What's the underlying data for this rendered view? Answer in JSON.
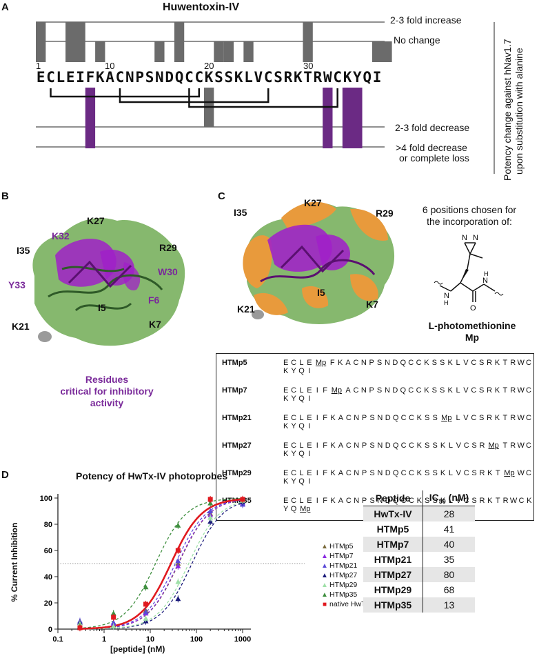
{
  "panels": {
    "a": "A",
    "b": "B",
    "c": "C",
    "d": "D"
  },
  "panel_a": {
    "title": "Huwentoxin-IV",
    "sequence": [
      "E",
      "C",
      "L",
      "E",
      "I",
      "F",
      "K",
      "A",
      "C",
      "N",
      "P",
      "S",
      "N",
      "D",
      "Q",
      "C",
      "C",
      "K",
      "S",
      "S",
      "K",
      "L",
      "V",
      "C",
      "S",
      "R",
      "K",
      "T",
      "R",
      "W",
      "C",
      "K",
      "Y",
      "Q",
      "I"
    ],
    "position_numbers": [
      "1",
      "10",
      "20",
      "30"
    ],
    "levels": [
      "2-3 fold increase",
      "No change",
      "2-3 fold decrease",
      ">4 fold decrease",
      "or complete loss"
    ],
    "side_label_line1": "Potency change against hNav1.7",
    "side_label_line2": "upon substitution with alanine",
    "colors": {
      "neutral": "#6b6b6b",
      "critical": "#6b2a84"
    }
  },
  "panel_b": {
    "labels": [
      "K27",
      "I35",
      "R29",
      "K32",
      "W30",
      "Y33",
      "F6",
      "I5",
      "K21",
      "K7"
    ],
    "caption_line1": "Residues",
    "caption_line2": "critical for inhibitory",
    "caption_line3": "activity",
    "colors": {
      "surface": "#86b86e",
      "critical": "#a020c8",
      "label": "#7a2a9a"
    }
  },
  "panel_c": {
    "labels": [
      "K27",
      "I35",
      "R29",
      "I5",
      "K21",
      "K7"
    ],
    "desc_line1": "6 positions chosen for",
    "desc_line2": "the incorporation of:",
    "compound_name": "L-photomethionine",
    "compound_abbr": "Mp",
    "colors": {
      "orange": "#e89a3c"
    },
    "sequences": [
      {
        "name": "HTMp5",
        "pre": "ECLE",
        "post": "FKACNPSNDQCCKSSKLVCSRKTRWCKYQI"
      },
      {
        "name": "HTMp7",
        "pre": "ECLEIF",
        "post": "ACNPSNDQCCKSSKLVCSRKTRWCKYQI"
      },
      {
        "name": "HTMp21",
        "pre": "ECLEIFKACNPSNDQCCKSS",
        "post": "LVCSRKTRWCKYQI"
      },
      {
        "name": "HTMp27",
        "pre": "ECLEIFKACNPSNDQCCKSSKLVCSR",
        "post": "TRWCKYQI"
      },
      {
        "name": "HTMp29",
        "pre": "ECLEIFKACNPSNDQCCKSSKLVCSRKT",
        "post": "WCKYQI"
      },
      {
        "name": "HTMp35",
        "pre": "ECLEIFKACNPSNDQCCKSSKLVCSRKTRWCKYQ",
        "post": ""
      }
    ]
  },
  "panel_d": {
    "chart_data": {
      "type": "scatter",
      "title": "Potency of HwTx-IV photoprobes",
      "xlabel": "[peptide] (nM)",
      "ylabel": "% Current Inhibition",
      "xscale": "log",
      "xlim": [
        0.1,
        1000
      ],
      "ylim": [
        0,
        100
      ],
      "xticks": [
        "0.1",
        "1",
        "10",
        "100",
        "1000"
      ],
      "yticks": [
        "0",
        "20",
        "40",
        "60",
        "80",
        "100"
      ],
      "reference_line_y": 50,
      "legend_position": "right",
      "x": [
        0.3,
        1.6,
        8,
        40,
        200,
        1000
      ],
      "series": [
        {
          "name": "HTMp5",
          "ic50": 41,
          "color": "#7a6a3a",
          "marker": "triangle",
          "y": [
            1,
            3,
            14,
            50,
            88,
            98
          ]
        },
        {
          "name": "HTMp7",
          "ic50": 40,
          "color": "#8a2be2",
          "marker": "triangle",
          "y": [
            2,
            4,
            12,
            48,
            87,
            96
          ]
        },
        {
          "name": "HTMp21",
          "ic50": 35,
          "color": "#5b4ad8",
          "marker": "triangle",
          "y": [
            6,
            5,
            13,
            52,
            90,
            95
          ]
        },
        {
          "name": "HTMp27",
          "ic50": 80,
          "color": "#1a1a7a",
          "marker": "triangle",
          "y": [
            5,
            2,
            6,
            23,
            82,
            97
          ]
        },
        {
          "name": "HTMp29",
          "ic50": 68,
          "color": "#9fe0a8",
          "marker": "triangle",
          "y": [
            4,
            2,
            8,
            36,
            85,
            98
          ]
        },
        {
          "name": "HTMp35",
          "ic50": 13,
          "color": "#3f8f3f",
          "marker": "triangle",
          "y": [
            2,
            12,
            32,
            79,
            96,
            99
          ]
        },
        {
          "name": "native HwTx-IV",
          "ic50": 28,
          "color": "#e0191f",
          "marker": "square",
          "y": [
            1,
            9,
            19,
            60,
            99,
            99
          ]
        }
      ]
    },
    "table": {
      "headers": [
        "Peptide",
        "IC",
        "50",
        " (nM)"
      ],
      "rows": [
        {
          "peptide": "HwTx-IV",
          "ic50": "28"
        },
        {
          "peptide": "HTMp5",
          "ic50": "41"
        },
        {
          "peptide": "HTMp7",
          "ic50": "40"
        },
        {
          "peptide": "HTMp21",
          "ic50": "35"
        },
        {
          "peptide": "HTMp27",
          "ic50": "80"
        },
        {
          "peptide": "HTMp29",
          "ic50": "68"
        },
        {
          "peptide": "HTMp35",
          "ic50": "13"
        }
      ]
    }
  }
}
